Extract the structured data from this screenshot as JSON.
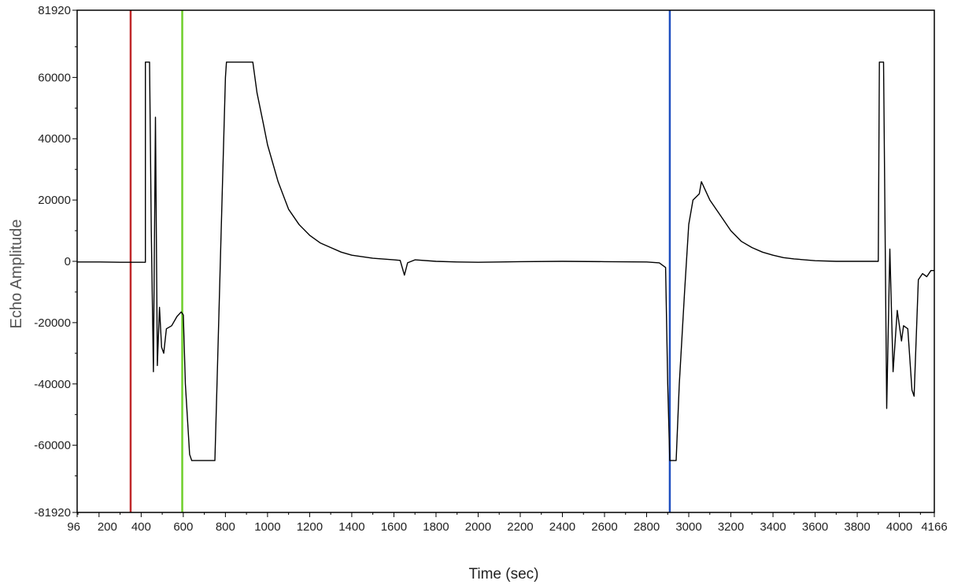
{
  "chart_data": {
    "type": "line",
    "xlabel": "Time (sec)",
    "ylabel": "Echo Amplitude",
    "xlim": [
      96,
      4166
    ],
    "ylim": [
      -81920,
      81920
    ],
    "x_ticks": [
      96,
      200,
      400,
      600,
      800,
      1000,
      1200,
      1400,
      1600,
      1800,
      2000,
      2200,
      2400,
      2600,
      2800,
      3000,
      3200,
      3400,
      3600,
      3800,
      4000,
      4166
    ],
    "y_ticks": [
      -81920,
      -60000,
      -40000,
      -20000,
      0,
      20000,
      40000,
      60000,
      81920
    ],
    "grid": false,
    "markers": [
      {
        "x": 350,
        "color": "#c0282a"
      },
      {
        "x": 595,
        "color": "#6fcf2a"
      },
      {
        "x": 2910,
        "color": "#1f4fc0"
      }
    ],
    "series": [
      {
        "color": "#000000",
        "points": [
          [
            96,
            -200
          ],
          [
            200,
            -200
          ],
          [
            300,
            -300
          ],
          [
            420,
            -300
          ],
          [
            420,
            65000
          ],
          [
            440,
            65000
          ],
          [
            448,
            10000
          ],
          [
            458,
            -36000
          ],
          [
            468,
            47000
          ],
          [
            477,
            -34000
          ],
          [
            487,
            -15000
          ],
          [
            497,
            -28000
          ],
          [
            507,
            -30000
          ],
          [
            520,
            -22000
          ],
          [
            545,
            -21000
          ],
          [
            570,
            -18000
          ],
          [
            590,
            -16500
          ],
          [
            600,
            -17500
          ],
          [
            610,
            -40000
          ],
          [
            630,
            -63000
          ],
          [
            640,
            -65000
          ],
          [
            750,
            -65000
          ],
          [
            760,
            -40000
          ],
          [
            780,
            10000
          ],
          [
            800,
            60000
          ],
          [
            805,
            65000
          ],
          [
            930,
            65000
          ],
          [
            950,
            55000
          ],
          [
            980,
            45000
          ],
          [
            1000,
            38000
          ],
          [
            1050,
            26000
          ],
          [
            1100,
            17000
          ],
          [
            1150,
            12000
          ],
          [
            1200,
            8500
          ],
          [
            1250,
            6000
          ],
          [
            1300,
            4500
          ],
          [
            1350,
            3000
          ],
          [
            1400,
            2000
          ],
          [
            1500,
            1000
          ],
          [
            1600,
            500
          ],
          [
            1630,
            300
          ],
          [
            1650,
            -4500
          ],
          [
            1665,
            -500
          ],
          [
            1700,
            500
          ],
          [
            1800,
            0
          ],
          [
            1900,
            -200
          ],
          [
            2000,
            -300
          ],
          [
            2200,
            -100
          ],
          [
            2400,
            0
          ],
          [
            2600,
            -100
          ],
          [
            2800,
            -200
          ],
          [
            2860,
            -500
          ],
          [
            2890,
            -2000
          ],
          [
            2900,
            -40000
          ],
          [
            2910,
            -65000
          ],
          [
            2940,
            -65000
          ],
          [
            2955,
            -40000
          ],
          [
            2980,
            -10000
          ],
          [
            3000,
            12000
          ],
          [
            3020,
            20000
          ],
          [
            3050,
            22000
          ],
          [
            3060,
            26000
          ],
          [
            3100,
            20000
          ],
          [
            3150,
            15000
          ],
          [
            3200,
            10000
          ],
          [
            3250,
            6500
          ],
          [
            3300,
            4500
          ],
          [
            3350,
            3000
          ],
          [
            3400,
            2000
          ],
          [
            3450,
            1200
          ],
          [
            3500,
            800
          ],
          [
            3600,
            200
          ],
          [
            3700,
            0
          ],
          [
            3800,
            0
          ],
          [
            3900,
            0
          ],
          [
            3905,
            65000
          ],
          [
            3925,
            65000
          ],
          [
            3940,
            -48000
          ],
          [
            3955,
            4000
          ],
          [
            3970,
            -36000
          ],
          [
            3990,
            -16000
          ],
          [
            4010,
            -26000
          ],
          [
            4020,
            -21000
          ],
          [
            4040,
            -22000
          ],
          [
            4060,
            -42000
          ],
          [
            4070,
            -44000
          ],
          [
            4090,
            -6000
          ],
          [
            4110,
            -4000
          ],
          [
            4130,
            -5000
          ],
          [
            4150,
            -3000
          ],
          [
            4166,
            -3000
          ]
        ]
      }
    ]
  }
}
